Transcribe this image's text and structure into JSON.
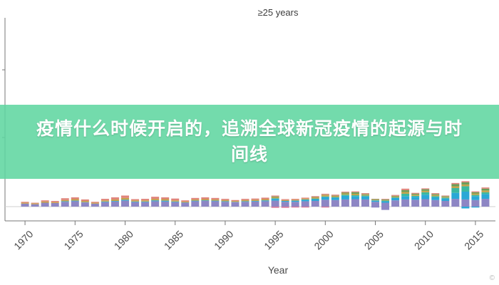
{
  "header": {
    "series_label": "≥25 years"
  },
  "banner": {
    "title": "疫情什么时候开启的，追溯全球新冠疫情的起源与时间线"
  },
  "chart_data": {
    "type": "bar",
    "stacked": true,
    "xlabel": "Year",
    "ylabel": "",
    "x_ticks": [
      1970,
      1975,
      1980,
      1985,
      1990,
      1995,
      2000,
      2005,
      2010,
      2015
    ],
    "x": [
      1970,
      1971,
      1972,
      1973,
      1974,
      1975,
      1976,
      1977,
      1978,
      1979,
      1980,
      1981,
      1982,
      1983,
      1984,
      1985,
      1986,
      1987,
      1988,
      1989,
      1990,
      1991,
      1992,
      1993,
      1994,
      1995,
      1996,
      1997,
      1998,
      1999,
      2000,
      2001,
      2002,
      2003,
      2004,
      2005,
      2006,
      2007,
      2008,
      2009,
      2010,
      2011,
      2012,
      2013,
      2014,
      2015,
      2016
    ],
    "xlim": [
      1968,
      2017
    ],
    "ylim": [
      -2,
      18
    ],
    "series": [
      {
        "color": "#8d86c4",
        "values": [
          1.0,
          0.8,
          1.3,
          1.2,
          1.6,
          1.8,
          1.4,
          1.0,
          1.5,
          1.7,
          2.0,
          1.5,
          1.5,
          1.8,
          1.7,
          1.5,
          1.3,
          1.8,
          1.9,
          1.8,
          1.6,
          1.5,
          1.6,
          1.7,
          1.8,
          2.0,
          1.6,
          1.6,
          1.8,
          1.9,
          2.3,
          2.2,
          2.4,
          2.5,
          2.4,
          1.6,
          1.3,
          2.1,
          2.4,
          2.3,
          2.5,
          2.2,
          1.9,
          2.6,
          2.4,
          2.2,
          2.6
        ]
      },
      {
        "color": "#2aa8d6",
        "values": [
          0.0,
          0.0,
          0.0,
          0.0,
          0.2,
          0.2,
          0.1,
          0.0,
          0.2,
          0.2,
          0.3,
          0.2,
          0.2,
          0.3,
          0.3,
          0.2,
          0.1,
          0.2,
          0.2,
          0.2,
          0.2,
          0.1,
          0.2,
          0.2,
          0.3,
          0.6,
          0.3,
          0.4,
          0.5,
          0.6,
          0.9,
          0.8,
          1.2,
          1.0,
          1.0,
          0.4,
          0.5,
          0.8,
          1.1,
          1.0,
          1.5,
          0.9,
          0.8,
          2.0,
          2.6,
          1.3,
          1.6
        ]
      },
      {
        "color": "#3bb8a0",
        "values": [
          0.0,
          0.0,
          0.0,
          0.0,
          0.0,
          0.0,
          0.0,
          0.0,
          0.0,
          0.0,
          0.0,
          0.0,
          0.0,
          0.0,
          0.0,
          0.0,
          0.0,
          0.0,
          0.0,
          0.0,
          0.0,
          0.0,
          0.0,
          0.0,
          0.0,
          0.2,
          0.0,
          0.0,
          0.1,
          0.2,
          0.2,
          0.2,
          0.4,
          0.3,
          0.3,
          0.1,
          0.2,
          0.2,
          0.8,
          0.3,
          0.8,
          0.4,
          0.3,
          1.6,
          1.8,
          0.4,
          0.6
        ]
      },
      {
        "color": "#c4a24a",
        "values": [
          0.3,
          0.3,
          0.4,
          0.3,
          0.4,
          0.5,
          0.4,
          0.3,
          0.4,
          0.5,
          0.6,
          0.4,
          0.4,
          0.5,
          0.5,
          0.4,
          0.3,
          0.4,
          0.4,
          0.4,
          0.4,
          0.3,
          0.4,
          0.4,
          0.4,
          0.4,
          0.3,
          0.3,
          0.3,
          0.4,
          0.5,
          0.4,
          0.4,
          0.5,
          0.3,
          0.2,
          0.2,
          0.3,
          0.6,
          0.4,
          0.5,
          0.4,
          0.3,
          0.6,
          0.6,
          0.5,
          0.6
        ]
      },
      {
        "color": "#6a9e58",
        "values": [
          0.0,
          0.0,
          0.0,
          0.0,
          0.0,
          0.0,
          0.0,
          0.0,
          0.0,
          0.0,
          0.0,
          0.0,
          0.0,
          0.0,
          0.0,
          0.0,
          0.0,
          0.0,
          0.0,
          0.0,
          0.0,
          0.0,
          0.0,
          0.0,
          0.0,
          0.2,
          0.0,
          0.0,
          0.0,
          0.1,
          0.1,
          0.1,
          0.3,
          0.5,
          0.2,
          0.2,
          0.2,
          0.2,
          0.6,
          0.3,
          0.5,
          0.3,
          0.2,
          0.7,
          0.7,
          0.4,
          0.6
        ]
      },
      {
        "color": "#e0847a",
        "values": [
          0.3,
          0.2,
          0.4,
          0.4,
          0.6,
          0.6,
          0.5,
          0.3,
          0.5,
          0.7,
          0.8,
          0.4,
          0.5,
          0.7,
          0.6,
          0.6,
          0.4,
          0.5,
          0.6,
          0.5,
          0.4,
          0.3,
          0.4,
          0.4,
          0.5,
          0.3,
          0.3,
          0.3,
          0.3,
          0.3,
          0.3,
          0.3,
          0.3,
          0.3,
          0.3,
          0.1,
          0.2,
          0.3,
          0.5,
          0.3,
          0.3,
          0.3,
          0.2,
          0.4,
          0.4,
          0.3,
          0.4
        ]
      }
    ],
    "negative_series": [
      {
        "color": "#d6799a",
        "values": [
          0,
          0,
          0,
          0,
          0,
          0,
          0,
          0,
          0,
          0,
          0,
          0,
          0,
          0,
          0,
          0,
          0,
          0,
          0,
          0,
          0,
          0,
          0,
          0,
          0,
          -0.4,
          -0.4,
          -0.3,
          -0.3,
          0,
          -0.3,
          0,
          0,
          0,
          0,
          0,
          0,
          0,
          0,
          0,
          0,
          0,
          0,
          0,
          0,
          0,
          0
        ]
      },
      {
        "color": "#8d86c4",
        "values": [
          0,
          0,
          0,
          0,
          0,
          0,
          0,
          0,
          0,
          0,
          0,
          0,
          0,
          0,
          0,
          0,
          0,
          0,
          0,
          0,
          0,
          0,
          0,
          0,
          0,
          0,
          0,
          0,
          0,
          0,
          0,
          0,
          0,
          0,
          0,
          -0.3,
          -1.1,
          0,
          0,
          0,
          0,
          0,
          0,
          0,
          0,
          0,
          0
        ]
      },
      {
        "color": "#2aa8d6",
        "values": [
          0,
          0,
          0,
          0,
          0,
          0,
          0,
          0,
          0,
          0,
          0,
          0,
          0,
          0,
          0,
          0,
          0,
          0,
          0,
          0,
          0,
          0,
          0,
          0,
          0,
          0,
          0,
          0,
          0,
          0,
          0,
          0,
          0,
          0,
          0,
          0,
          0,
          0,
          0,
          0,
          0,
          0,
          0,
          0,
          -0.6,
          -0.3,
          0
        ]
      }
    ]
  },
  "footer": {
    "watermark": "©"
  }
}
